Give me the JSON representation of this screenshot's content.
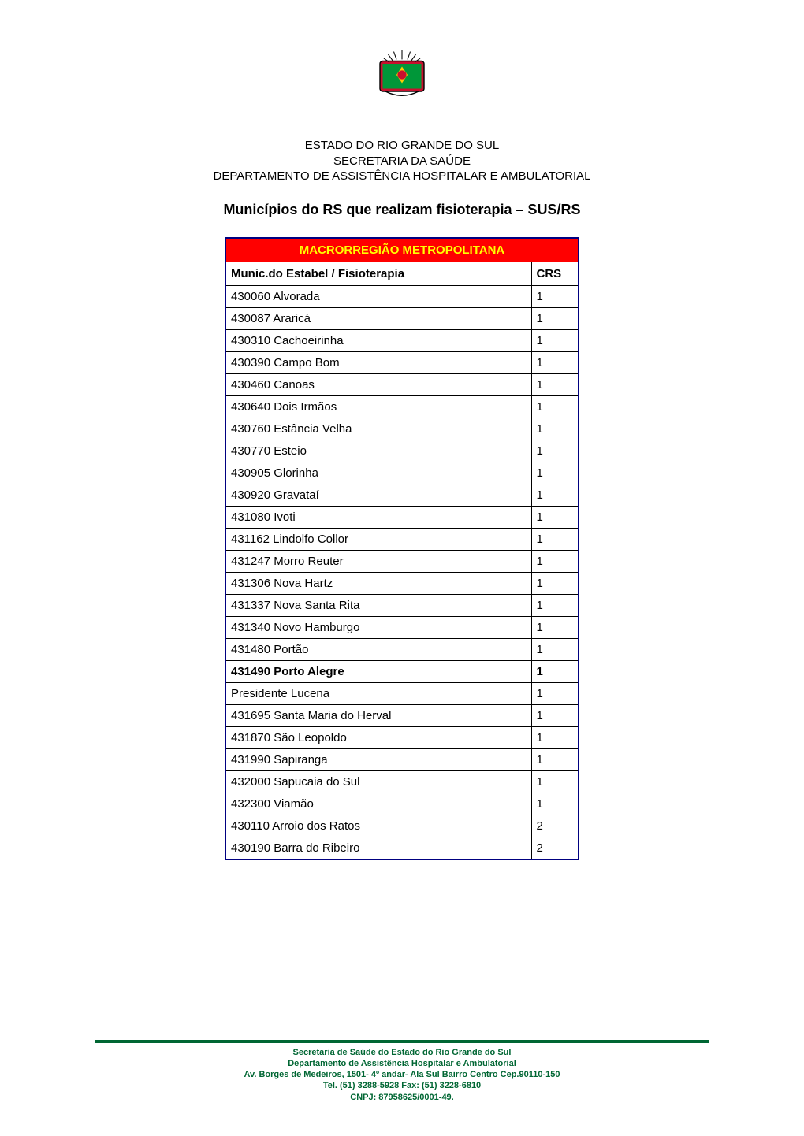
{
  "header": {
    "line1": "ESTADO DO RIO GRANDE DO SUL",
    "line2": "SECRETARIA DA SAÚDE",
    "line3": "DEPARTAMENTO DE ASSISTÊNCIA HOSPITALAR E AMBULATORIAL"
  },
  "page_title": "Municípios do RS que realizam fisioterapia – SUS/RS",
  "table": {
    "region_header": "MACRORREGIÃO METROPOLITANA",
    "columns": [
      "Munic.do Estabel / Fisioterapia",
      "CRS"
    ],
    "rows": [
      {
        "municipio": "430060 Alvorada",
        "crs": "1",
        "bold": false
      },
      {
        "municipio": "430087 Araricá",
        "crs": "1",
        "bold": false
      },
      {
        "municipio": "430310 Cachoeirinha",
        "crs": "1",
        "bold": false
      },
      {
        "municipio": "430390 Campo Bom",
        "crs": "1",
        "bold": false
      },
      {
        "municipio": "430460 Canoas",
        "crs": "1",
        "bold": false
      },
      {
        "municipio": "430640 Dois Irmãos",
        "crs": "1",
        "bold": false
      },
      {
        "municipio": "430760 Estância Velha",
        "crs": "1",
        "bold": false
      },
      {
        "municipio": "430770 Esteio",
        "crs": "1",
        "bold": false
      },
      {
        "municipio": "430905 Glorinha",
        "crs": "1",
        "bold": false
      },
      {
        "municipio": "430920 Gravataí",
        "crs": "1",
        "bold": false
      },
      {
        "municipio": "431080 Ivoti",
        "crs": "1",
        "bold": false
      },
      {
        "municipio": "431162 Lindolfo Collor",
        "crs": "1",
        "bold": false
      },
      {
        "municipio": "431247 Morro Reuter",
        "crs": "1",
        "bold": false
      },
      {
        "municipio": "431306 Nova Hartz",
        "crs": "1",
        "bold": false
      },
      {
        "municipio": "431337 Nova Santa Rita",
        "crs": "1",
        "bold": false
      },
      {
        "municipio": "431340 Novo Hamburgo",
        "crs": "1",
        "bold": false
      },
      {
        "municipio": "431480 Portão",
        "crs": "1",
        "bold": false
      },
      {
        "municipio": "431490 Porto Alegre",
        "crs": "1",
        "bold": true
      },
      {
        "municipio": "Presidente Lucena",
        "crs": "1",
        "bold": false
      },
      {
        "municipio": "431695 Santa Maria do Herval",
        "crs": "1",
        "bold": false
      },
      {
        "municipio": "431870 São Leopoldo",
        "crs": "1",
        "bold": false
      },
      {
        "municipio": "431990 Sapiranga",
        "crs": "1",
        "bold": false
      },
      {
        "municipio": "432000 Sapucaia do Sul",
        "crs": "1",
        "bold": false
      },
      {
        "municipio": "432300 Viamão",
        "crs": "1",
        "bold": false
      },
      {
        "municipio": "430110 Arroio dos Ratos",
        "crs": "2",
        "bold": false
      },
      {
        "municipio": "430190 Barra do Ribeiro",
        "crs": "2",
        "bold": false
      }
    ]
  },
  "footer": {
    "line1": "Secretaria de Saúde do Estado do Rio Grande do Sul",
    "line2": "Departamento de Assistência Hospitalar e Ambulatorial",
    "line3": "Av. Borges de Medeiros, 1501- 4º andar- Ala Sul Bairro Centro  Cep.90110-150",
    "line4": "Tel. (51) 3288-5928 Fax: (51) 3228-6810",
    "line5": "CNPJ: 87958625/0001-49."
  },
  "logo": {
    "colors": {
      "shield_outer": "#000000",
      "shield_red": "#c8102e",
      "shield_green": "#009739",
      "shield_yellow": "#ffcc00"
    }
  }
}
